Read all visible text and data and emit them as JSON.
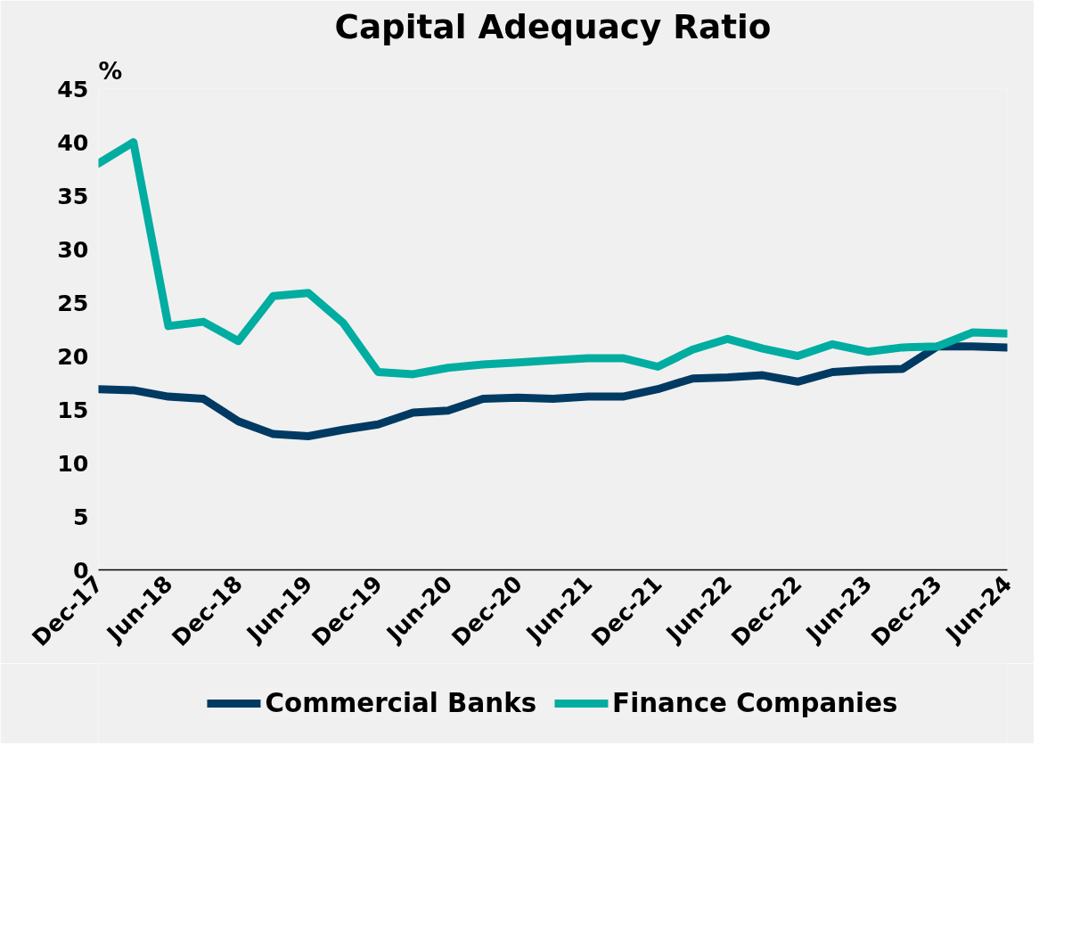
{
  "chart_data": {
    "type": "line",
    "title": "Capital Adequacy Ratio",
    "ylabel": "%",
    "categories": [
      "Dec-17",
      null,
      "Jun-18",
      null,
      "Dec-18",
      null,
      "Jun-19",
      null,
      "Dec-19",
      null,
      "Jun-20",
      null,
      "Dec-20",
      null,
      "Jun-21",
      null,
      "Dec-21",
      null,
      "Jun-22",
      null,
      "Dec-22",
      null,
      "Jun-23",
      null,
      "Dec-23",
      null,
      "Jun-24"
    ],
    "series": [
      {
        "name": "Commercial Banks",
        "color": "#003a63",
        "values": [
          16.9,
          16.8,
          16.2,
          16.0,
          13.9,
          12.7,
          12.5,
          13.1,
          13.6,
          14.7,
          14.9,
          16.0,
          16.1,
          16.0,
          16.2,
          16.2,
          16.9,
          17.9,
          18.0,
          18.2,
          17.6,
          18.5,
          18.7,
          18.8,
          20.9,
          20.9,
          20.8
        ]
      },
      {
        "name": "Finance Companies",
        "color": "#00ada0",
        "values": [
          38.0,
          40.0,
          22.8,
          23.2,
          21.4,
          25.6,
          25.9,
          23.1,
          18.5,
          18.3,
          18.9,
          19.2,
          19.4,
          19.6,
          19.8,
          19.8,
          19.0,
          20.6,
          21.6,
          20.7,
          20.0,
          21.1,
          20.4,
          20.8,
          20.9,
          22.2,
          22.1
        ]
      }
    ],
    "ylim": [
      0,
      45
    ],
    "yticks": [
      0,
      5,
      10,
      15,
      20,
      25,
      30,
      35,
      40,
      45
    ],
    "grid": false,
    "legend": "bottom",
    "line_style": "solid"
  }
}
